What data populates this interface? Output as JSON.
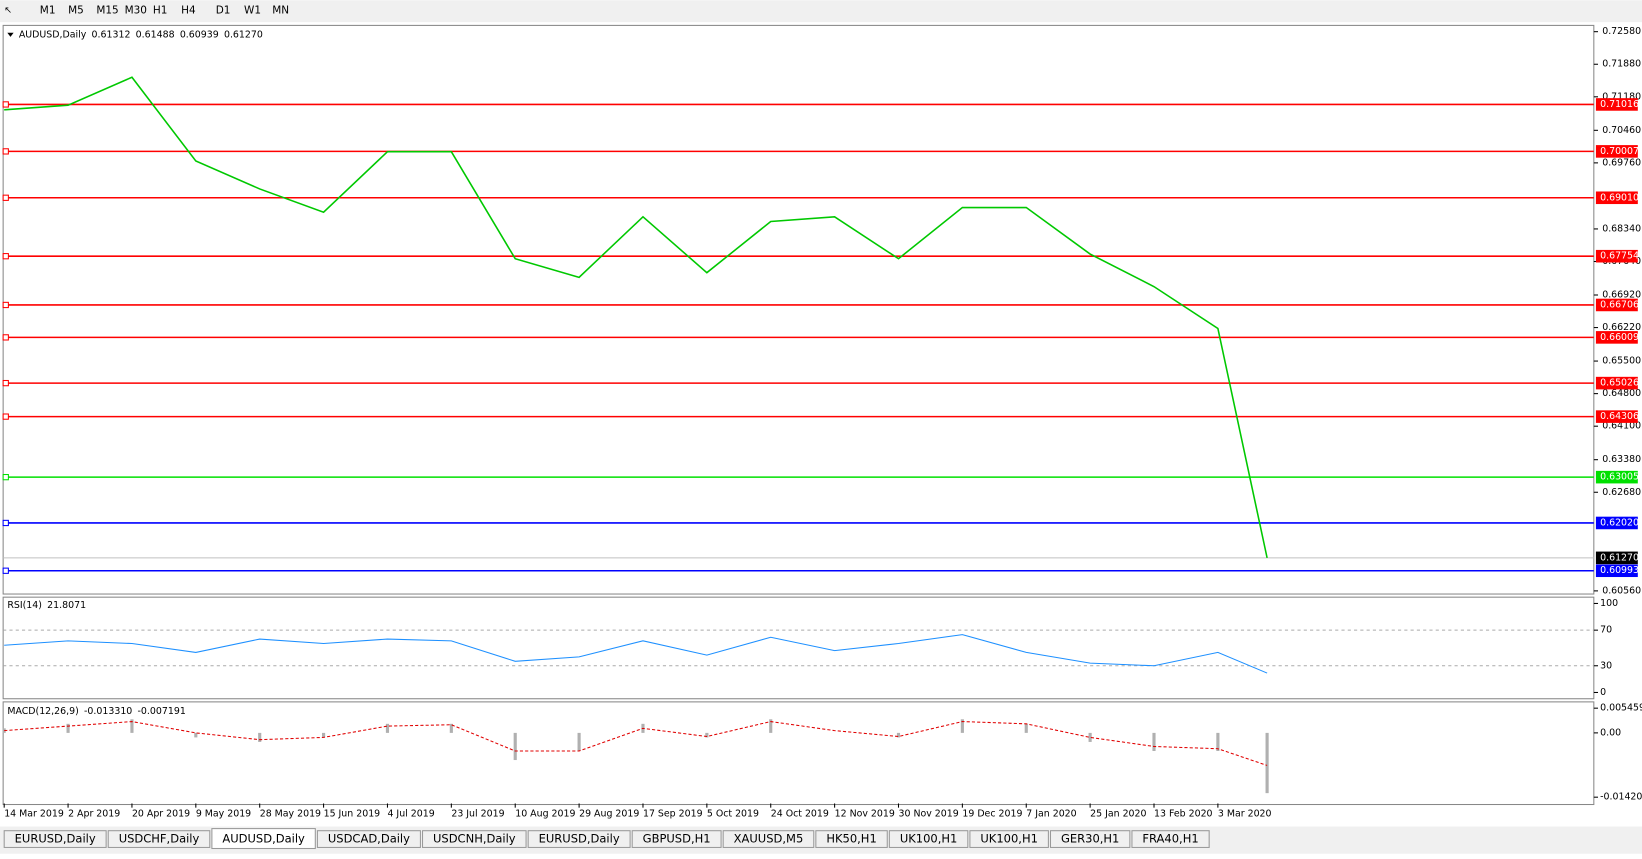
{
  "toolbar": {
    "timeframes": [
      "M1",
      "M5",
      "M15",
      "M30",
      "H1",
      "H4",
      "D1",
      "W1",
      "MN"
    ]
  },
  "main": {
    "symbol": "AUDUSD,Daily",
    "open": 0.61312,
    "high": 0.61488,
    "low": 0.60939,
    "close": {
      "value": 0.6127,
      "label": "0.61270"
    },
    "ylim": [
      0.6056,
      0.7258
    ],
    "yticks": [
      {
        "value": 0.7258,
        "label": "0.72580"
      },
      {
        "value": 0.7188,
        "label": "0.71880"
      },
      {
        "value": 0.7118,
        "label": "0.71180"
      },
      {
        "value": 0.7046,
        "label": "0.70460"
      },
      {
        "value": 0.6976,
        "label": "0.69760"
      },
      {
        "value": 0.6834,
        "label": "0.68340"
      },
      {
        "value": 0.6764,
        "label": "0.67640"
      },
      {
        "value": 0.6692,
        "label": "0.66920"
      },
      {
        "value": 0.6622,
        "label": "0.66220"
      },
      {
        "value": 0.655,
        "label": "0.65500"
      },
      {
        "value": 0.648,
        "label": "0.64800"
      },
      {
        "value": 0.641,
        "label": "0.64100"
      },
      {
        "value": 0.6338,
        "label": "0.63380"
      },
      {
        "value": 0.6268,
        "label": "0.62680"
      },
      {
        "value": 0.6056,
        "label": "0.60560"
      }
    ],
    "levels": [
      {
        "value": 0.71016,
        "color": "#ff0000"
      },
      {
        "value": 0.70007,
        "color": "#ff0000"
      },
      {
        "value": 0.6901,
        "label": "0.69010",
        "color": "#ff0000"
      },
      {
        "value": 0.67754,
        "color": "#ff0000"
      },
      {
        "value": 0.66706,
        "color": "#ff0000"
      },
      {
        "value": 0.66009,
        "color": "#ff0000"
      },
      {
        "value": 0.65026,
        "color": "#ff0000"
      },
      {
        "value": 0.64306,
        "color": "#ff0000"
      },
      {
        "value": 0.63005,
        "color": "#00e000"
      },
      {
        "value": 0.6202,
        "label": "0.62020",
        "color": "#0000ff"
      },
      {
        "value": 0.60993,
        "color": "#0000ff"
      }
    ],
    "dates": [
      "14 Mar 2019",
      "2 Apr 2019",
      "20 Apr 2019",
      "9 May 2019",
      "28 May 2019",
      "15 Jun 2019",
      "4 Jul 2019",
      "23 Jul 2019",
      "10 Aug 2019",
      "29 Aug 2019",
      "17 Sep 2019",
      "5 Oct 2019",
      "24 Oct 2019",
      "12 Nov 2019",
      "30 Nov 2019",
      "19 Dec 2019",
      "7 Jan 2020",
      "25 Jan 2020",
      "13 Feb 2020",
      "3 Mar 2020"
    ],
    "closes": [
      0.709,
      0.71,
      0.716,
      0.698,
      0.692,
      0.687,
      0.7,
      0.7,
      0.677,
      0.673,
      0.686,
      0.674,
      0.685,
      0.686,
      0.677,
      0.688,
      0.688,
      0.678,
      0.671,
      0.662
    ]
  },
  "rsi": {
    "name": "RSI(14)",
    "value": 21.8071,
    "ylim": [
      0,
      100
    ],
    "yticks": [
      100,
      70,
      30,
      0
    ],
    "values": [
      53,
      58,
      55,
      45,
      60,
      55,
      60,
      58,
      35,
      40,
      58,
      42,
      62,
      47,
      55,
      65,
      45,
      33,
      30,
      45
    ]
  },
  "macd": {
    "name": "MACD(12,26,9)",
    "main": {
      "value": -0.01331,
      "label": "-0.013310"
    },
    "signal": -0.007191,
    "ylim": [
      -0.014204,
      0.005459
    ],
    "yticks": [
      0.005459,
      {
        "value": 0,
        "label": "0.00"
      },
      -0.014204
    ],
    "values": [
      0.001,
      0.002,
      0.003,
      -0.001,
      -0.002,
      -0.001,
      0.002,
      0.002,
      -0.006,
      -0.004,
      0.002,
      -0.001,
      0.003,
      0,
      -0.001,
      0.003,
      0.002,
      -0.002,
      -0.004,
      -0.004
    ],
    "signals": [
      0.0005,
      0.0015,
      0.0025,
      0,
      -0.0015,
      -0.001,
      0.0015,
      0.0018,
      -0.004,
      -0.004,
      0.001,
      -0.0008,
      0.0025,
      0.0005,
      -0.0008,
      0.0025,
      0.002,
      -0.001,
      -0.003,
      -0.0035
    ]
  },
  "tabs": [
    "EURUSD,Daily",
    "USDCHF,Daily",
    "AUDUSD,Daily",
    "USDCAD,Daily",
    "USDCNH,Daily",
    "EURUSD,Daily",
    "GBPUSD,H1",
    "XAUUSD,M5",
    "HK50,H1",
    "UK100,H1",
    "UK100,H1",
    "GER30,H1",
    "FRA40,H1"
  ],
  "active_tab": "AUDUSD,Daily"
}
